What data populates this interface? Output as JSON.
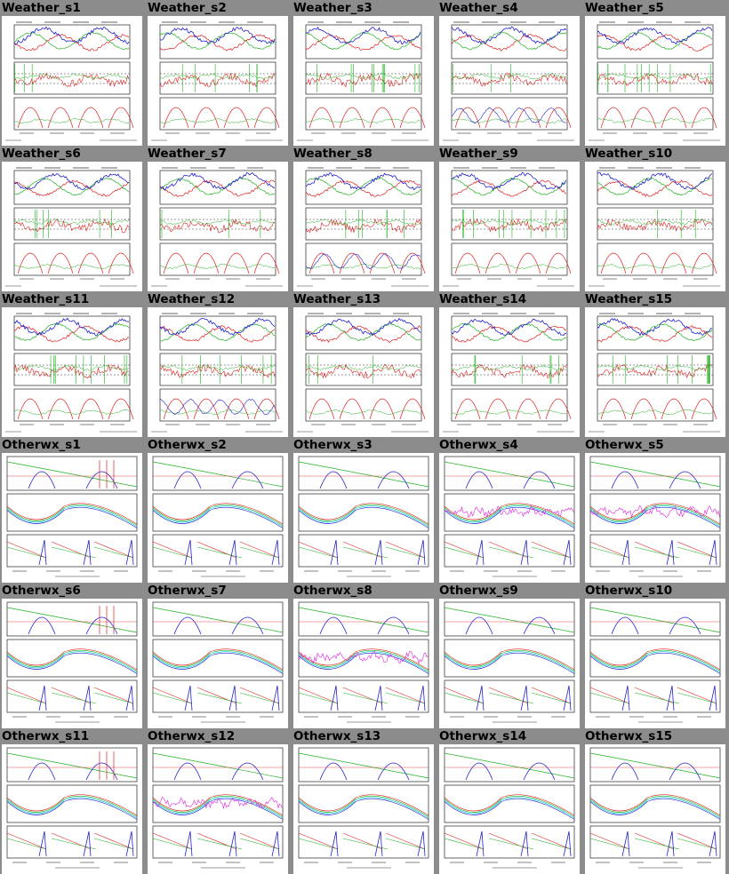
{
  "page": {
    "background": "#8c8c8c"
  },
  "thumbnails": [
    {
      "label": "Weather_s1",
      "kind": "weather"
    },
    {
      "label": "Weather_s2",
      "kind": "weather"
    },
    {
      "label": "Weather_s3",
      "kind": "weather"
    },
    {
      "label": "Weather_s4",
      "kind": "weather"
    },
    {
      "label": "Weather_s5",
      "kind": "weather"
    },
    {
      "label": "Weather_s6",
      "kind": "weather"
    },
    {
      "label": "Weather_s7",
      "kind": "weather"
    },
    {
      "label": "Weather_s8",
      "kind": "weather"
    },
    {
      "label": "Weather_s9",
      "kind": "weather"
    },
    {
      "label": "Weather_s10",
      "kind": "weather"
    },
    {
      "label": "Weather_s11",
      "kind": "weather"
    },
    {
      "label": "Weather_s12",
      "kind": "weather"
    },
    {
      "label": "Weather_s13",
      "kind": "weather"
    },
    {
      "label": "Weather_s14",
      "kind": "weather"
    },
    {
      "label": "Weather_s15",
      "kind": "weather"
    },
    {
      "label": "Otherwx_s1",
      "kind": "otherwx"
    },
    {
      "label": "Otherwx_s2",
      "kind": "otherwx"
    },
    {
      "label": "Otherwx_s3",
      "kind": "otherwx"
    },
    {
      "label": "Otherwx_s4",
      "kind": "otherwx"
    },
    {
      "label": "Otherwx_s5",
      "kind": "otherwx"
    },
    {
      "label": "Otherwx_s6",
      "kind": "otherwx"
    },
    {
      "label": "Otherwx_s7",
      "kind": "otherwx"
    },
    {
      "label": "Otherwx_s8",
      "kind": "otherwx"
    },
    {
      "label": "Otherwx_s9",
      "kind": "otherwx"
    },
    {
      "label": "Otherwx_s10",
      "kind": "otherwx"
    },
    {
      "label": "Otherwx_s11",
      "kind": "otherwx"
    },
    {
      "label": "Otherwx_s12",
      "kind": "otherwx"
    },
    {
      "label": "Otherwx_s13",
      "kind": "otherwx"
    },
    {
      "label": "Otherwx_s14",
      "kind": "otherwx"
    },
    {
      "label": "Otherwx_s15",
      "kind": "otherwx"
    }
  ],
  "series_colors": {
    "red": "#e02020",
    "green": "#20b020",
    "blue": "#2020d0",
    "cyan": "#00c8e0",
    "magenta": "#e020e0",
    "black": "#000000"
  }
}
